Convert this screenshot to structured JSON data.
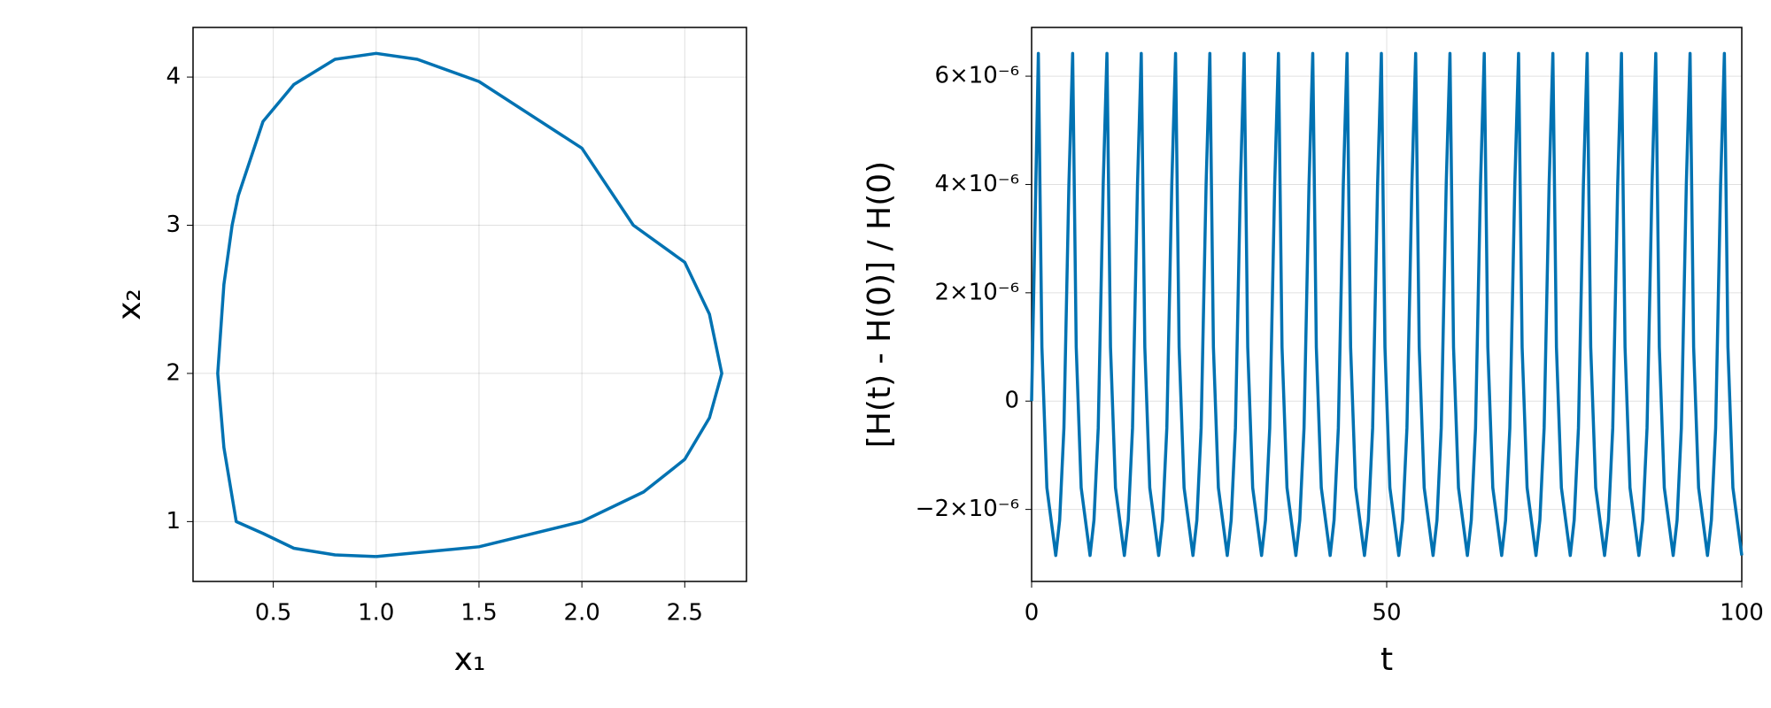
{
  "chart_data": [
    {
      "type": "line",
      "x_label": "x₁",
      "y_label": "x₂",
      "color": "#0072b2",
      "grid": true,
      "xlim": [
        0.11,
        2.8
      ],
      "ylim": [
        0.596,
        4.335
      ],
      "xticks": [
        0.5,
        {
          "value": 1,
          "label": "1.0"
        },
        1.5,
        {
          "value": 2,
          "label": "2.0"
        },
        2.5
      ],
      "yticks": [
        1,
        2,
        3,
        4
      ],
      "x": [
        1.0,
        1.5,
        2.0,
        2.3,
        2.5,
        2.62,
        2.68,
        2.62,
        2.5,
        2.25,
        2.0,
        1.5,
        1.2,
        1.0,
        0.8,
        0.6,
        0.45,
        0.33,
        0.3,
        0.26,
        0.23,
        0.26,
        0.32,
        0.45,
        0.6,
        0.8,
        1.0
      ],
      "values": [
        0.764,
        0.83,
        1.0,
        1.2,
        1.42,
        1.7,
        2.0,
        2.4,
        2.75,
        3.0,
        3.52,
        3.97,
        4.12,
        4.16,
        4.12,
        3.95,
        3.7,
        3.2,
        3.0,
        2.6,
        2.0,
        1.5,
        1.0,
        0.92,
        0.82,
        0.775,
        0.764
      ]
    },
    {
      "type": "line",
      "x_label": "t",
      "y_label": "[H(t) - H(0)] / H(0)",
      "color": "#0072b2",
      "grid": true,
      "xlim": [
        0,
        100
      ],
      "ylim": [
        -3.33e-06,
        6.9e-06
      ],
      "xticks": [
        0,
        50,
        100
      ],
      "yticks": [
        {
          "value": -2e-06,
          "label": "−2×10⁻⁶"
        },
        0,
        {
          "value": 2e-06,
          "label": "2×10⁻⁶"
        },
        {
          "value": 4e-06,
          "label": "4×10⁻⁶"
        },
        {
          "value": 6e-06,
          "label": "6×10⁻⁶"
        }
      ],
      "x": [
        0,
        0.95,
        1.45,
        2.15,
        2.85,
        3.4,
        3.95,
        4.55,
        5.25,
        5.78,
        6.28,
        6.98,
        7.68,
        8.23,
        8.78,
        9.38,
        10.08,
        10.61,
        11.11,
        11.81,
        12.51,
        13.06,
        13.61,
        14.21,
        14.91,
        15.44,
        15.94,
        16.64,
        17.34,
        17.89,
        18.44,
        19.04,
        19.74,
        20.27,
        20.77,
        21.47,
        22.17,
        22.72,
        23.27,
        23.87,
        24.57,
        25.1,
        25.6,
        26.3,
        27,
        27.55,
        28.1,
        28.7,
        29.4,
        29.93,
        30.43,
        31.13,
        31.83,
        32.38,
        32.93,
        33.53,
        34.23,
        34.76,
        35.26,
        35.96,
        36.66,
        37.21,
        37.76,
        38.36,
        39.06,
        39.59,
        40.09,
        40.79,
        41.49,
        42.04,
        42.59,
        43.19,
        43.89,
        44.42,
        44.92,
        45.62,
        46.32,
        46.87,
        47.42,
        48.02,
        48.72,
        49.25,
        49.75,
        50.45,
        51.15,
        51.7,
        52.25,
        52.85,
        53.55,
        54.08,
        54.58,
        55.28,
        55.98,
        56.53,
        57.08,
        57.68,
        58.38,
        58.91,
        59.41,
        60.11,
        60.81,
        61.36,
        61.91,
        62.51,
        63.21,
        63.74,
        64.24,
        64.94,
        65.64,
        66.19,
        66.74,
        67.34,
        68.04,
        68.57,
        69.07,
        69.77,
        70.47,
        71.02,
        71.57,
        72.17,
        72.87,
        73.4,
        73.9,
        74.6,
        75.3,
        75.85,
        76.4,
        77,
        77.7,
        78.23,
        78.73,
        79.43,
        80.13,
        80.68,
        81.23,
        81.83,
        82.53,
        83.06,
        83.56,
        84.26,
        84.96,
        85.51,
        86.06,
        86.66,
        87.36,
        87.89,
        88.39,
        89.09,
        89.79,
        90.34,
        90.89,
        91.49,
        92.19,
        92.72,
        93.22,
        93.92,
        94.62,
        95.17,
        95.72,
        96.32,
        97.02,
        97.55,
        98.05,
        98.75,
        99.45,
        100
      ],
      "values": [
        0,
        6.42e-06,
        1e-06,
        -1.6e-06,
        -2.3e-06,
        -2.85e-06,
        -2.2e-06,
        -5e-07,
        4e-06,
        6.42e-06,
        1e-06,
        -1.6e-06,
        -2.3e-06,
        -2.85e-06,
        -2.2e-06,
        -5e-07,
        4e-06,
        6.42e-06,
        1e-06,
        -1.6e-06,
        -2.3e-06,
        -2.85e-06,
        -2.2e-06,
        -5e-07,
        4e-06,
        6.42e-06,
        1e-06,
        -1.6e-06,
        -2.3e-06,
        -2.85e-06,
        -2.2e-06,
        -5e-07,
        4e-06,
        6.42e-06,
        1e-06,
        -1.6e-06,
        -2.3e-06,
        -2.85e-06,
        -2.2e-06,
        -5e-07,
        4e-06,
        6.42e-06,
        1e-06,
        -1.6e-06,
        -2.3e-06,
        -2.85e-06,
        -2.2e-06,
        -5e-07,
        4e-06,
        6.42e-06,
        1e-06,
        -1.6e-06,
        -2.3e-06,
        -2.85e-06,
        -2.2e-06,
        -5e-07,
        4e-06,
        6.42e-06,
        1e-06,
        -1.6e-06,
        -2.3e-06,
        -2.85e-06,
        -2.2e-06,
        -5e-07,
        4e-06,
        6.42e-06,
        1e-06,
        -1.6e-06,
        -2.3e-06,
        -2.85e-06,
        -2.2e-06,
        -5e-07,
        4e-06,
        6.42e-06,
        1e-06,
        -1.6e-06,
        -2.3e-06,
        -2.85e-06,
        -2.2e-06,
        -5e-07,
        4e-06,
        6.42e-06,
        1e-06,
        -1.6e-06,
        -2.3e-06,
        -2.85e-06,
        -2.2e-06,
        -5e-07,
        4e-06,
        6.42e-06,
        1e-06,
        -1.6e-06,
        -2.3e-06,
        -2.85e-06,
        -2.2e-06,
        -5e-07,
        4e-06,
        6.42e-06,
        1e-06,
        -1.6e-06,
        -2.3e-06,
        -2.85e-06,
        -2.2e-06,
        -5e-07,
        4e-06,
        6.42e-06,
        1e-06,
        -1.6e-06,
        -2.3e-06,
        -2.85e-06,
        -2.2e-06,
        -5e-07,
        4e-06,
        6.42e-06,
        1e-06,
        -1.6e-06,
        -2.3e-06,
        -2.85e-06,
        -2.2e-06,
        -5e-07,
        4e-06,
        6.42e-06,
        1e-06,
        -1.6e-06,
        -2.3e-06,
        -2.85e-06,
        -2.2e-06,
        -5e-07,
        4e-06,
        6.42e-06,
        1e-06,
        -1.6e-06,
        -2.3e-06,
        -2.85e-06,
        -2.2e-06,
        -5e-07,
        4e-06,
        6.42e-06,
        1e-06,
        -1.6e-06,
        -2.3e-06,
        -2.85e-06,
        -2.2e-06,
        -5e-07,
        4e-06,
        6.42e-06,
        1e-06,
        -1.6e-06,
        -2.3e-06,
        -2.85e-06,
        -2.2e-06,
        -5e-07,
        4e-06,
        6.42e-06,
        1e-06,
        -1.6e-06,
        -2.3e-06,
        -2.85e-06,
        -2.2e-06,
        -5e-07,
        4e-06,
        6.42e-06,
        1e-06,
        -1.6e-06,
        -2.3e-06,
        -2.85e-06
      ]
    }
  ]
}
